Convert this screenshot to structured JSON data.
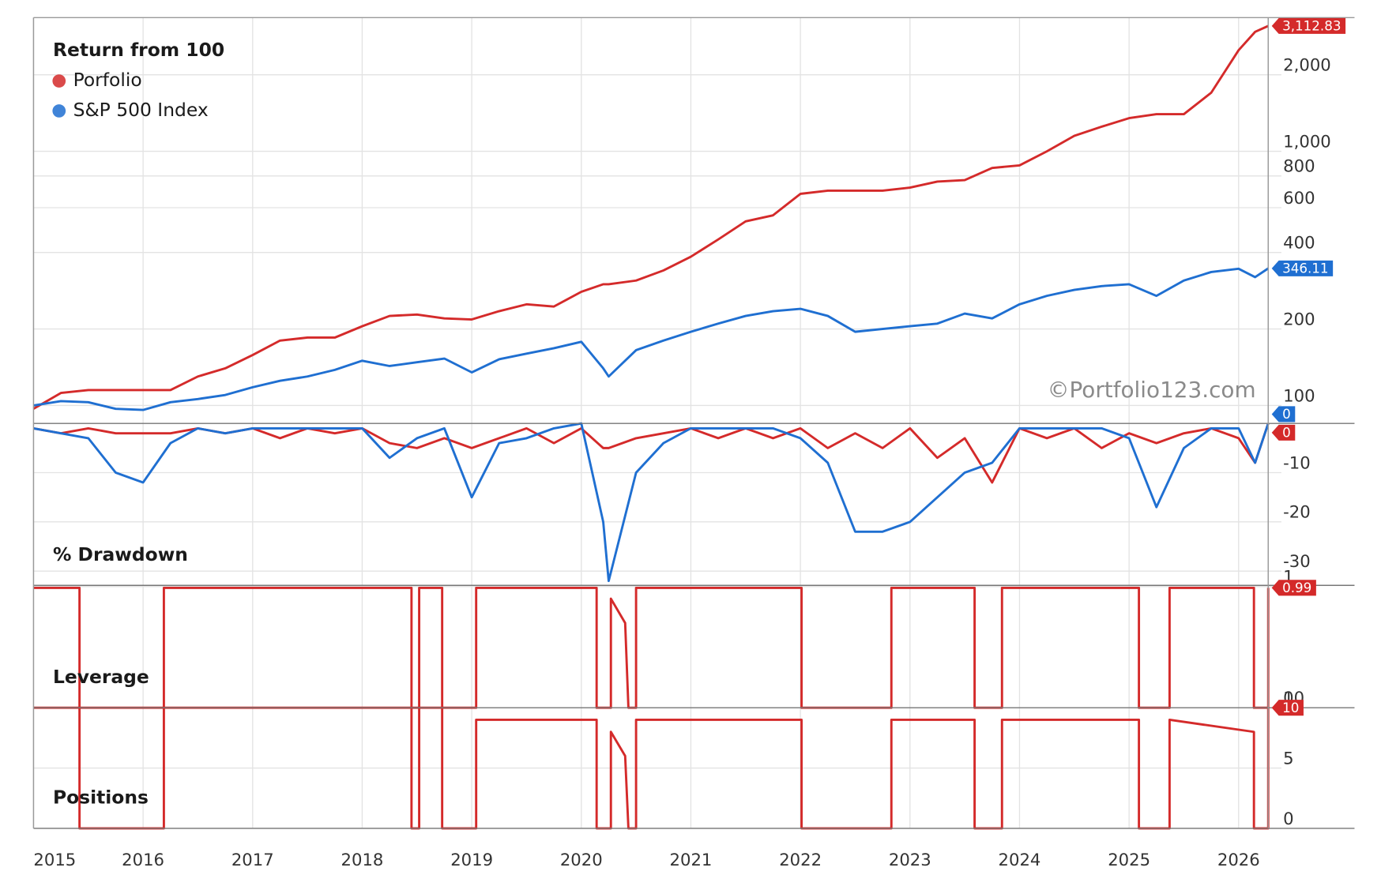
{
  "chart_data": [
    {
      "type": "line",
      "title": "Return from 100",
      "log": true,
      "grid": true,
      "legend": "upper left",
      "annotation": "©Portfolio123.com",
      "x": [
        2015,
        2015.25,
        2015.5,
        2015.75,
        2016,
        2016.25,
        2016.5,
        2016.75,
        2017,
        2017.25,
        2017.5,
        2017.75,
        2018,
        2018.25,
        2018.5,
        2018.75,
        2019,
        2019.25,
        2019.5,
        2019.75,
        2020,
        2020.2,
        2020.25,
        2020.5,
        2020.75,
        2021,
        2021.25,
        2021.5,
        2021.75,
        2022,
        2022.25,
        2022.5,
        2022.75,
        2023,
        2023.25,
        2023.5,
        2023.75,
        2024,
        2024.25,
        2024.5,
        2024.75,
        2025,
        2025.25,
        2025.5,
        2025.75,
        2026,
        2026.15,
        2026.27
      ],
      "series": [
        {
          "name": "Porfolio",
          "color": "#d42a2a",
          "values": [
            97,
            112,
            115,
            115,
            115,
            115,
            130,
            140,
            158,
            180,
            185,
            185,
            205,
            225,
            228,
            220,
            218,
            235,
            250,
            245,
            280,
            300,
            300,
            310,
            340,
            385,
            450,
            530,
            560,
            680,
            700,
            700,
            700,
            720,
            760,
            770,
            860,
            880,
            1000,
            1150,
            1250,
            1350,
            1400,
            1400,
            1700,
            2500,
            2950,
            3112.83
          ],
          "value_labels": [
            null,
            null,
            null,
            null,
            null,
            null,
            null,
            null,
            null,
            null,
            null,
            null,
            null,
            null,
            null,
            null,
            null,
            null,
            null,
            null,
            null,
            null,
            null,
            null,
            null,
            null,
            null,
            null,
            null,
            null,
            null,
            null,
            null,
            null,
            null,
            null,
            null,
            null,
            null,
            null,
            null,
            null,
            null,
            null,
            null,
            null,
            null,
            "3,112.83"
          ]
        },
        {
          "name": "S&P 500 Index",
          "color": "#1f6fd1",
          "values": [
            100,
            104,
            103,
            97,
            96,
            103,
            106,
            110,
            118,
            125,
            130,
            138,
            150,
            143,
            148,
            153,
            135,
            152,
            160,
            168,
            178,
            140,
            130,
            165,
            180,
            195,
            210,
            225,
            235,
            240,
            225,
            195,
            200,
            205,
            210,
            230,
            220,
            250,
            270,
            285,
            295,
            300,
            270,
            310,
            335,
            345,
            320,
            346.11
          ],
          "value_labels": [
            null,
            null,
            null,
            null,
            null,
            null,
            null,
            null,
            null,
            null,
            null,
            null,
            null,
            null,
            null,
            null,
            null,
            null,
            null,
            null,
            null,
            null,
            null,
            null,
            null,
            null,
            null,
            null,
            null,
            null,
            null,
            null,
            null,
            null,
            null,
            null,
            null,
            null,
            null,
            null,
            null,
            null,
            null,
            null,
            null,
            null,
            null,
            "346.11"
          ]
        }
      ],
      "xlim": [
        2015,
        2026.27
      ],
      "xticks": [
        2015,
        2016,
        2017,
        2018,
        2019,
        2020,
        2021,
        2022,
        2023,
        2024,
        2025,
        2026
      ],
      "ylim": [
        85,
        3357
      ],
      "yticks": [
        100,
        200,
        400,
        600,
        800,
        {
          "value": 1000,
          "label": "1,000"
        },
        {
          "value": 2000,
          "label": "2,000"
        }
      ]
    },
    {
      "type": "line",
      "title": "% Drawdown",
      "grid": true,
      "x": [
        2015,
        2015.25,
        2015.5,
        2015.75,
        2016,
        2016.25,
        2016.5,
        2016.75,
        2017,
        2017.25,
        2017.5,
        2017.75,
        2018,
        2018.25,
        2018.5,
        2018.75,
        2019,
        2019.25,
        2019.5,
        2019.75,
        2020,
        2020.2,
        2020.25,
        2020.5,
        2020.75,
        2021,
        2021.25,
        2021.5,
        2021.75,
        2022,
        2022.25,
        2022.5,
        2022.75,
        2023,
        2023.25,
        2023.5,
        2023.75,
        2024,
        2024.25,
        2024.5,
        2024.75,
        2025,
        2025.25,
        2025.5,
        2025.75,
        2026,
        2026.15,
        2026.27
      ],
      "series": [
        {
          "color": "#d42a2a",
          "values": [
            -1,
            -2,
            -1,
            -2,
            -2,
            -2,
            -1,
            -2,
            -1,
            -3,
            -1,
            -2,
            -1,
            -4,
            -5,
            -3,
            -5,
            -3,
            -1,
            -4,
            -1,
            -5,
            -5,
            -3,
            -2,
            -1,
            -3,
            -1,
            -3,
            -1,
            -5,
            -2,
            -5,
            -1,
            -7,
            -3,
            -12,
            -1,
            -3,
            -1,
            -5,
            -2,
            -4,
            -2,
            -1,
            -3,
            -8,
            0
          ],
          "value_labels": [
            null,
            null,
            null,
            null,
            null,
            null,
            null,
            null,
            null,
            null,
            null,
            null,
            null,
            null,
            null,
            null,
            null,
            null,
            null,
            null,
            null,
            null,
            null,
            null,
            null,
            null,
            null,
            null,
            null,
            null,
            null,
            null,
            null,
            null,
            null,
            null,
            null,
            null,
            null,
            null,
            null,
            null,
            null,
            null,
            null,
            null,
            null,
            "0"
          ]
        },
        {
          "color": "#1f6fd1",
          "values": [
            -1,
            -2,
            -3,
            -10,
            -12,
            -4,
            -1,
            -2,
            -1,
            -1,
            -1,
            -1,
            -1,
            -7,
            -3,
            -1,
            -15,
            -4,
            -3,
            -1,
            0,
            -20,
            -32,
            -10,
            -4,
            -1,
            -1,
            -1,
            -1,
            -3,
            -8,
            -22,
            -22,
            -20,
            -15,
            -10,
            -8,
            -1,
            -1,
            -1,
            -1,
            -3,
            -17,
            -5,
            -1,
            -1,
            -8,
            0
          ],
          "value_labels": [
            null,
            null,
            null,
            null,
            null,
            null,
            null,
            null,
            null,
            null,
            null,
            null,
            null,
            null,
            null,
            null,
            null,
            null,
            null,
            null,
            null,
            null,
            null,
            null,
            null,
            null,
            null,
            null,
            null,
            null,
            null,
            null,
            null,
            null,
            null,
            null,
            null,
            null,
            null,
            null,
            null,
            null,
            null,
            null,
            null,
            null,
            null,
            "0"
          ]
        }
      ],
      "xlim": [
        2015,
        2026.27
      ],
      "xticks": [
        2015,
        2016,
        2017,
        2018,
        2019,
        2020,
        2021,
        2022,
        2023,
        2024,
        2025,
        2026
      ],
      "ylim": [
        -32.9,
        0
      ],
      "yticks": [
        0,
        -10,
        -20,
        -30
      ]
    },
    {
      "type": "line",
      "title": "Leverage",
      "grid": true,
      "x": [
        2015,
        2015.42,
        2015.42,
        2016.19,
        2016.19,
        2018.45,
        2018.45,
        2018.52,
        2018.52,
        2018.73,
        2018.73,
        2019.04,
        2019.04,
        2020.14,
        2020.14,
        2020.27,
        2020.27,
        2020.4,
        2020.43,
        2020.5,
        2020.5,
        2022.01,
        2022.01,
        2022.83,
        2022.83,
        2023.59,
        2023.59,
        2023.84,
        2023.84,
        2025.09,
        2025.09,
        2025.37,
        2025.37,
        2026.14,
        2026.14,
        2026.27,
        2026.27
      ],
      "series": [
        {
          "color": "#d42a2a",
          "values": [
            0.99,
            0.99,
            0,
            0,
            0.99,
            0.99,
            0,
            0,
            0.99,
            0.99,
            0,
            0,
            0.99,
            0.99,
            0,
            0,
            0.9,
            0.7,
            0,
            0,
            0.99,
            0.99,
            0,
            0,
            0.99,
            0.99,
            0,
            0,
            0.99,
            0.99,
            0,
            0,
            0.99,
            0.99,
            0,
            0,
            0.99
          ],
          "value_labels": [
            null,
            null,
            null,
            null,
            null,
            null,
            null,
            null,
            null,
            null,
            null,
            null,
            null,
            null,
            null,
            null,
            null,
            null,
            null,
            null,
            null,
            null,
            null,
            null,
            null,
            null,
            null,
            null,
            null,
            null,
            null,
            null,
            null,
            null,
            null,
            null,
            "0.99"
          ]
        }
      ],
      "xlim": [
        2015,
        2026.27
      ],
      "xticks": [
        2015,
        2016,
        2017,
        2018,
        2019,
        2020,
        2021,
        2022,
        2023,
        2024,
        2025,
        2026
      ],
      "ylim": [
        0,
        1.01
      ],
      "yticks": [
        0,
        1
      ]
    },
    {
      "type": "line",
      "title": "Positions",
      "grid": true,
      "x": [
        2015,
        2015.42,
        2015.42,
        2016.19,
        2016.19,
        2018.45,
        2018.45,
        2018.52,
        2018.52,
        2018.73,
        2018.73,
        2019.04,
        2019.04,
        2020.14,
        2020.14,
        2020.27,
        2020.27,
        2020.4,
        2020.43,
        2020.5,
        2020.5,
        2022.01,
        2022.01,
        2022.83,
        2022.83,
        2023.59,
        2023.59,
        2023.84,
        2023.84,
        2025.09,
        2025.09,
        2025.37,
        2025.37,
        2026.14,
        2026.14,
        2026.27,
        2026.27
      ],
      "series": [
        {
          "color": "#d42a2a",
          "values": [
            10,
            10,
            0,
            0,
            10,
            10,
            0,
            0,
            10,
            10,
            0,
            0,
            9,
            9,
            0,
            0,
            8,
            6,
            0,
            0,
            9,
            9,
            0,
            0,
            9,
            9,
            0,
            0,
            9,
            9,
            0,
            0,
            9,
            8,
            0,
            0,
            10
          ],
          "value_labels": [
            null,
            null,
            null,
            null,
            null,
            null,
            null,
            null,
            null,
            null,
            null,
            null,
            null,
            null,
            null,
            null,
            null,
            null,
            null,
            null,
            null,
            null,
            null,
            null,
            null,
            null,
            null,
            null,
            null,
            null,
            null,
            null,
            null,
            null,
            null,
            null,
            "10"
          ]
        }
      ],
      "xlim": [
        2015,
        2026.27
      ],
      "xticks": [
        2015,
        2016,
        2017,
        2018,
        2019,
        2020,
        2021,
        2022,
        2023,
        2024,
        2025,
        2026
      ],
      "ylim": [
        0,
        10
      ],
      "yticks": [
        0,
        5,
        10
      ]
    }
  ]
}
